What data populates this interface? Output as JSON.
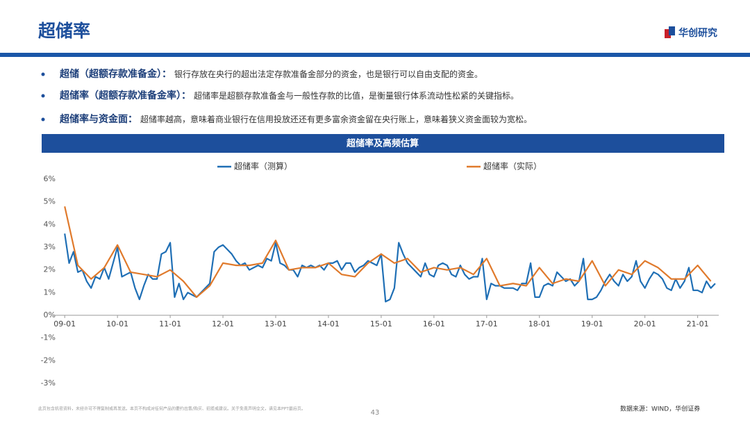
{
  "header": {
    "title": "超储率",
    "logo": "华创研究"
  },
  "bullets": [
    {
      "label": "超储（超额存款准备金）：",
      "text": "银行存放在央行的超出法定存款准备金部分的资金，也是银行可以自由支配的资金。"
    },
    {
      "label": "超储率（超额存款准备金率）：",
      "text": "超储率是超额存款准备金与一般性存款的比值，是衡量银行体系流动性松紧的关键指标。"
    },
    {
      "label": "超储率与资金面：",
      "text": "超储率越高，意味着商业银行在信用投放还还有更多富余资金留在央行账上，意味着狭义资金面较为宽松。"
    }
  ],
  "chart_data": {
    "type": "line",
    "title": "超储率及高频估算",
    "xlim": [
      -2.4,
      148.8
    ],
    "xticks": [
      {
        "value": 0,
        "label": "09-01"
      },
      {
        "value": 12,
        "label": "10-01"
      },
      {
        "value": 24,
        "label": "11-01"
      },
      {
        "value": 36,
        "label": "12-01"
      },
      {
        "value": 48,
        "label": "13-01"
      },
      {
        "value": 60,
        "label": "14-01"
      },
      {
        "value": 72,
        "label": "15-01"
      },
      {
        "value": 84,
        "label": "16-01"
      },
      {
        "value": 96,
        "label": "17-01"
      },
      {
        "value": 108,
        "label": "18-01"
      },
      {
        "value": 120,
        "label": "19-01"
      },
      {
        "value": 132,
        "label": "20-01"
      },
      {
        "value": 144,
        "label": "21-01"
      }
    ],
    "ylim": [
      -3,
      6
    ],
    "yticks": [
      {
        "value": -3,
        "label": "-3%"
      },
      {
        "value": -2,
        "label": "-2%"
      },
      {
        "value": -1,
        "label": "-1%"
      },
      {
        "value": 0,
        "label": "0%"
      },
      {
        "value": 1,
        "label": "1%"
      },
      {
        "value": 2,
        "label": "2%"
      },
      {
        "value": 3,
        "label": "3%"
      },
      {
        "value": 4,
        "label": "4%"
      },
      {
        "value": 5,
        "label": "5%"
      },
      {
        "value": 6,
        "label": "6%"
      }
    ],
    "series": [
      {
        "name": "超储率（测算）",
        "color": "#1f6fb5",
        "x": [
          0,
          1,
          2,
          3,
          4,
          5,
          6,
          7,
          8,
          9,
          10,
          11,
          12,
          13,
          14,
          15,
          16,
          17,
          18,
          19,
          20,
          21,
          22,
          23,
          24,
          25,
          26,
          27,
          28,
          29,
          30,
          31,
          32,
          33,
          34,
          35,
          36,
          37,
          38,
          39,
          40,
          41,
          42,
          43,
          44,
          45,
          46,
          47,
          48,
          49,
          50,
          51,
          52,
          53,
          54,
          55,
          56,
          57,
          58,
          59,
          60,
          61,
          62,
          63,
          64,
          65,
          66,
          67,
          68,
          69,
          70,
          71,
          72,
          73,
          74,
          75,
          76,
          77,
          78,
          79,
          80,
          81,
          82,
          83,
          84,
          85,
          86,
          87,
          88,
          89,
          90,
          91,
          92,
          93,
          94,
          95,
          96,
          97,
          98,
          99,
          100,
          101,
          102,
          103,
          104,
          105,
          106,
          107,
          108,
          109,
          110,
          111,
          112,
          113,
          114,
          115,
          116,
          117,
          118,
          119,
          120,
          121,
          122,
          123,
          124,
          125,
          126,
          127,
          128,
          129,
          130,
          131,
          132,
          133,
          134,
          135,
          136,
          137,
          138,
          139,
          140,
          141,
          142,
          143,
          144,
          145,
          146,
          147,
          148
        ],
        "values": [
          3.6,
          2.3,
          2.8,
          1.9,
          2.0,
          1.5,
          1.2,
          1.7,
          1.6,
          2.1,
          1.6,
          2.3,
          3.0,
          1.7,
          1.8,
          1.9,
          1.2,
          0.7,
          1.3,
          1.8,
          1.6,
          1.6,
          2.7,
          2.8,
          3.2,
          0.8,
          1.4,
          0.7,
          1.0,
          0.9,
          0.8,
          1.0,
          1.2,
          1.4,
          2.8,
          3.0,
          3.1,
          2.9,
          2.7,
          2.4,
          2.2,
          2.3,
          2.0,
          2.1,
          2.2,
          2.1,
          2.5,
          2.4,
          3.2,
          2.3,
          2.2,
          2.0,
          2.0,
          1.7,
          2.2,
          2.1,
          2.2,
          2.1,
          2.2,
          2.0,
          2.3,
          2.3,
          2.4,
          2.0,
          2.3,
          2.3,
          1.9,
          2.1,
          2.2,
          2.4,
          2.3,
          2.2,
          2.7,
          0.6,
          0.7,
          1.2,
          3.2,
          2.7,
          2.3,
          2.1,
          1.9,
          1.7,
          2.3,
          1.8,
          1.7,
          2.2,
          2.3,
          2.2,
          1.8,
          1.7,
          2.2,
          1.8,
          1.6,
          1.7,
          1.7,
          2.5,
          0.7,
          1.4,
          1.3,
          1.3,
          1.2,
          1.2,
          1.2,
          1.1,
          1.4,
          1.4,
          2.3,
          0.8,
          0.8,
          1.3,
          1.4,
          1.3,
          1.9,
          1.7,
          1.5,
          1.6,
          1.3,
          1.5,
          2.5,
          0.7,
          0.7,
          0.8,
          1.1,
          1.5,
          1.8,
          1.5,
          1.3,
          1.8,
          1.5,
          1.7,
          2.4,
          1.5,
          1.2,
          1.6,
          1.9,
          1.8,
          1.6,
          1.2,
          1.1,
          1.6,
          1.2,
          1.5,
          2.1,
          1.1,
          1.1,
          1.0,
          1.5,
          1.2,
          1.4
        ]
      },
      {
        "name": "超储率（实际）",
        "color": "#e07a2c",
        "x": [
          0,
          3,
          6,
          9,
          12,
          15,
          18,
          21,
          24,
          27,
          30,
          33,
          36,
          39,
          42,
          45,
          48,
          51,
          54,
          57,
          60,
          63,
          66,
          69,
          72,
          75,
          78,
          81,
          84,
          87,
          90,
          93,
          96,
          99,
          102,
          105,
          108,
          111,
          114,
          117,
          120,
          123,
          126,
          129,
          132,
          135,
          138,
          141,
          144,
          147
        ],
        "values": [
          4.8,
          2.2,
          1.6,
          2.1,
          3.1,
          1.9,
          1.8,
          1.7,
          2.0,
          1.5,
          0.8,
          1.3,
          2.3,
          2.2,
          2.2,
          2.3,
          3.3,
          2.0,
          2.1,
          2.1,
          2.3,
          1.8,
          1.7,
          2.3,
          2.7,
          2.3,
          2.5,
          1.9,
          2.1,
          2.0,
          2.1,
          1.8,
          2.5,
          1.3,
          1.4,
          1.3,
          2.1,
          1.4,
          1.6,
          1.5,
          2.4,
          1.3,
          2.0,
          1.8,
          2.4,
          2.1,
          1.6,
          1.6,
          2.2,
          1.5
        ]
      }
    ]
  },
  "footer": {
    "disclaimer": "此页包含机密资料，未经许可不得复制或再发送。本页不构成对任何产品的要约出售/购买、招揽或建议。关于免责声明全文，请见本PPT最后页。",
    "page": 43,
    "source": "数据来源：WIND，华创证券"
  }
}
